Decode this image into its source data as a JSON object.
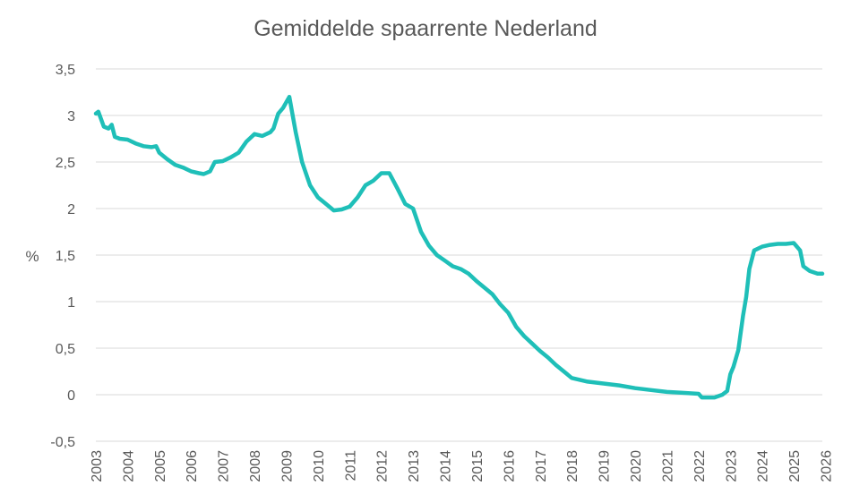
{
  "chart_data": {
    "type": "line",
    "title": "Gemiddelde spaarrente Nederland",
    "xlabel": "",
    "ylabel": "%",
    "xlim": [
      2003.0,
      2025.9
    ],
    "ylim": [
      -0.5,
      3.5
    ],
    "yticks": [
      -0.5,
      0,
      0.5,
      1,
      1.5,
      2,
      2.5,
      3,
      3.5
    ],
    "ytick_labels": [
      "-0,5",
      "0",
      "0,5",
      "1",
      "1,5",
      "2",
      "2,5",
      "3",
      "3,5"
    ],
    "xticks": [
      2003,
      2004,
      2005,
      2006,
      2007,
      2008,
      2009,
      2010,
      2011,
      2012,
      2013,
      2014,
      2015,
      2016,
      2017,
      2018,
      2019,
      2020,
      2021,
      2022,
      2023,
      2024,
      2025,
      2026
    ],
    "xtick_labels": [
      "2003",
      "2004",
      "2005",
      "2006",
      "2007",
      "2008",
      "2009",
      "2010",
      "2011",
      "2012",
      "2013",
      "2014",
      "2015",
      "2016",
      "2017",
      "2018",
      "2019",
      "2020",
      "2021",
      "2022",
      "2023",
      "2024",
      "2025",
      "2026"
    ],
    "grid": true,
    "legend": false,
    "series": [
      {
        "color": "#1fbfb8",
        "x": [
          2003.0,
          2003.08,
          2003.25,
          2003.4,
          2003.5,
          2003.6,
          2003.75,
          2004.0,
          2004.25,
          2004.5,
          2004.75,
          2004.9,
          2005.0,
          2005.25,
          2005.5,
          2005.75,
          2006.0,
          2006.25,
          2006.4,
          2006.6,
          2006.75,
          2007.0,
          2007.25,
          2007.5,
          2007.75,
          2008.0,
          2008.25,
          2008.5,
          2008.6,
          2008.75,
          2008.9,
          2009.0,
          2009.1,
          2009.3,
          2009.5,
          2009.75,
          2010.0,
          2010.25,
          2010.5,
          2010.75,
          2011.0,
          2011.25,
          2011.5,
          2011.75,
          2012.0,
          2012.25,
          2012.5,
          2012.75,
          2013.0,
          2013.25,
          2013.5,
          2013.75,
          2014.0,
          2014.25,
          2014.5,
          2014.75,
          2015.0,
          2015.25,
          2015.5,
          2015.75,
          2016.0,
          2016.25,
          2016.5,
          2016.75,
          2017.0,
          2017.25,
          2017.5,
          2017.75,
          2018.0,
          2018.5,
          2019.0,
          2019.5,
          2020.0,
          2020.5,
          2021.0,
          2021.5,
          2022.0,
          2022.1,
          2022.5,
          2022.75,
          2022.9,
          2023.0,
          2023.1,
          2023.25,
          2023.4,
          2023.5,
          2023.6,
          2023.75,
          2024.0,
          2024.25,
          2024.5,
          2024.75,
          2025.0,
          2025.2,
          2025.3,
          2025.5,
          2025.75,
          2025.9
        ],
        "values": [
          3.02,
          3.04,
          2.88,
          2.86,
          2.9,
          2.77,
          2.75,
          2.74,
          2.7,
          2.67,
          2.66,
          2.67,
          2.6,
          2.53,
          2.47,
          2.44,
          2.4,
          2.38,
          2.37,
          2.4,
          2.5,
          2.51,
          2.55,
          2.6,
          2.72,
          2.8,
          2.78,
          2.82,
          2.86,
          3.02,
          3.08,
          3.14,
          3.2,
          2.82,
          2.5,
          2.25,
          2.12,
          2.05,
          1.98,
          1.99,
          2.02,
          2.12,
          2.25,
          2.3,
          2.38,
          2.38,
          2.22,
          2.05,
          2.0,
          1.75,
          1.6,
          1.5,
          1.44,
          1.38,
          1.35,
          1.3,
          1.22,
          1.15,
          1.08,
          0.97,
          0.88,
          0.73,
          0.63,
          0.55,
          0.47,
          0.4,
          0.32,
          0.25,
          0.18,
          0.14,
          0.12,
          0.1,
          0.07,
          0.05,
          0.03,
          0.02,
          0.01,
          -0.03,
          -0.03,
          0.0,
          0.04,
          0.22,
          0.3,
          0.48,
          0.85,
          1.05,
          1.35,
          1.55,
          1.59,
          1.61,
          1.62,
          1.62,
          1.63,
          1.55,
          1.38,
          1.33,
          1.3,
          1.3
        ]
      }
    ]
  }
}
